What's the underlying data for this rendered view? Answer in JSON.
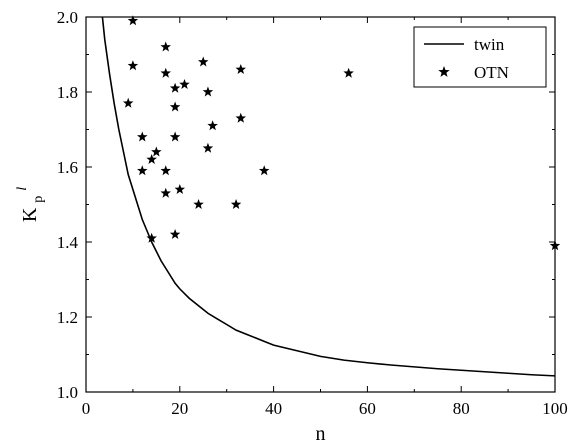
{
  "chart_data": {
    "type": "scatter",
    "title": "",
    "xlabel": "n",
    "ylabel": "K",
    "ylabel_sub": "p",
    "ylabel_sup": "l",
    "xlim": [
      0,
      100
    ],
    "ylim": [
      1.0,
      2.0
    ],
    "xticks": [
      0,
      20,
      40,
      60,
      80,
      100
    ],
    "xtick_labels": [
      "0",
      "20",
      "40",
      "60",
      "80",
      "100"
    ],
    "yticks": [
      1.0,
      1.2,
      1.4,
      1.6,
      1.8,
      2.0
    ],
    "ytick_labels": [
      "1.0",
      "1.2",
      "1.4",
      "1.6",
      "1.8",
      "2.0"
    ],
    "grid": false,
    "legend_position": "top-right",
    "series": [
      {
        "name": "twin",
        "kind": "line",
        "color": "#000000",
        "x": [
          3.5,
          4,
          5,
          6,
          7,
          8,
          9,
          10,
          11,
          12,
          13,
          14,
          15,
          16,
          17,
          18,
          19,
          20,
          22,
          24,
          26,
          28,
          30,
          32,
          35,
          38,
          40,
          45,
          50,
          55,
          60,
          65,
          70,
          75,
          80,
          85,
          90,
          95,
          100
        ],
        "y": [
          2.0,
          1.94,
          1.85,
          1.77,
          1.7,
          1.64,
          1.58,
          1.54,
          1.5,
          1.46,
          1.43,
          1.4,
          1.375,
          1.35,
          1.33,
          1.31,
          1.29,
          1.275,
          1.25,
          1.23,
          1.21,
          1.195,
          1.18,
          1.165,
          1.15,
          1.135,
          1.125,
          1.11,
          1.095,
          1.085,
          1.078,
          1.072,
          1.067,
          1.062,
          1.058,
          1.054,
          1.05,
          1.046,
          1.043
        ]
      },
      {
        "name": "OTN",
        "kind": "marker",
        "color": "#000000",
        "x": [
          10,
          10,
          9,
          17,
          17,
          19,
          21,
          19,
          25,
          26,
          33,
          12,
          19,
          27,
          33,
          14,
          15,
          12,
          17,
          26,
          17,
          20,
          24,
          32,
          38,
          19,
          14,
          56,
          100
        ],
        "y": [
          1.99,
          1.87,
          1.77,
          1.92,
          1.85,
          1.81,
          1.82,
          1.76,
          1.88,
          1.8,
          1.86,
          1.68,
          1.68,
          1.71,
          1.73,
          1.62,
          1.64,
          1.59,
          1.59,
          1.65,
          1.53,
          1.54,
          1.5,
          1.5,
          1.59,
          1.42,
          1.41,
          1.85,
          1.39
        ]
      }
    ]
  }
}
